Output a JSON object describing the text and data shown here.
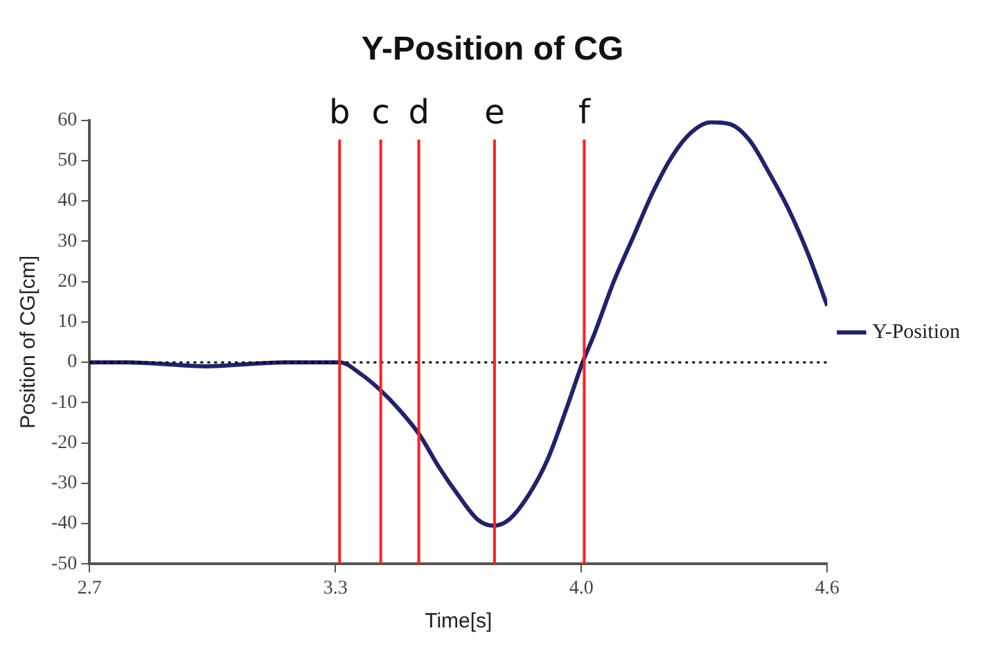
{
  "chart_data": {
    "type": "line",
    "title": "Y-Position of CG",
    "xlabel": "Time[s]",
    "ylabel": "Position of CG[cm]",
    "x": [
      2.7,
      2.8,
      2.9,
      3.0,
      3.1,
      3.2,
      3.3,
      3.344,
      3.4,
      3.45,
      3.5,
      3.55,
      3.6,
      3.65,
      3.7,
      3.74,
      3.78,
      3.83,
      3.88,
      3.93,
      3.97,
      4.0,
      4.05,
      4.1,
      4.15,
      4.2,
      4.25,
      4.3,
      4.35,
      4.4,
      4.45,
      4.5,
      4.55,
      4.6
    ],
    "series": [
      {
        "name": "Y-Position",
        "color": "#22226b",
        "values": [
          0,
          0,
          -0.5,
          -1,
          -0.5,
          0,
          0,
          0,
          -3,
          -7,
          -12,
          -18,
          -26,
          -33,
          -39,
          -40.5,
          -39,
          -33,
          -24,
          -11,
          0,
          7,
          20,
          31,
          42,
          51,
          57,
          59.5,
          59,
          55,
          47,
          38,
          27,
          14
        ]
      }
    ],
    "xlim": [
      2.7,
      4.6
    ],
    "xticks": [
      2.7,
      {
        "value": 3.3333,
        "label": "3.3"
      },
      {
        "value": 3.9667,
        "label": "4.0"
      },
      4.6
    ],
    "ylim": [
      -50,
      60
    ],
    "yticks": [
      -50,
      -40,
      -30,
      -20,
      -10,
      0,
      10,
      20,
      30,
      40,
      50,
      60
    ],
    "ref_lines": [
      {
        "axis": "y",
        "value": 0,
        "color": "#000000",
        "line_style": "dotted"
      },
      {
        "axis": "x",
        "value": 3.344,
        "label": "b",
        "color": "#ff2020"
      },
      {
        "axis": "x",
        "value": 3.45,
        "label": "c",
        "color": "#ff2020"
      },
      {
        "axis": "x",
        "value": 3.548,
        "label": "d",
        "color": "#ff2020"
      },
      {
        "axis": "x",
        "value": 3.743,
        "label": "e",
        "color": "#ff2020"
      },
      {
        "axis": "x",
        "value": 3.974,
        "label": "f",
        "color": "#ff2020"
      }
    ],
    "grid": false,
    "legend": "right",
    "marker": "none",
    "line_style": "solid"
  }
}
